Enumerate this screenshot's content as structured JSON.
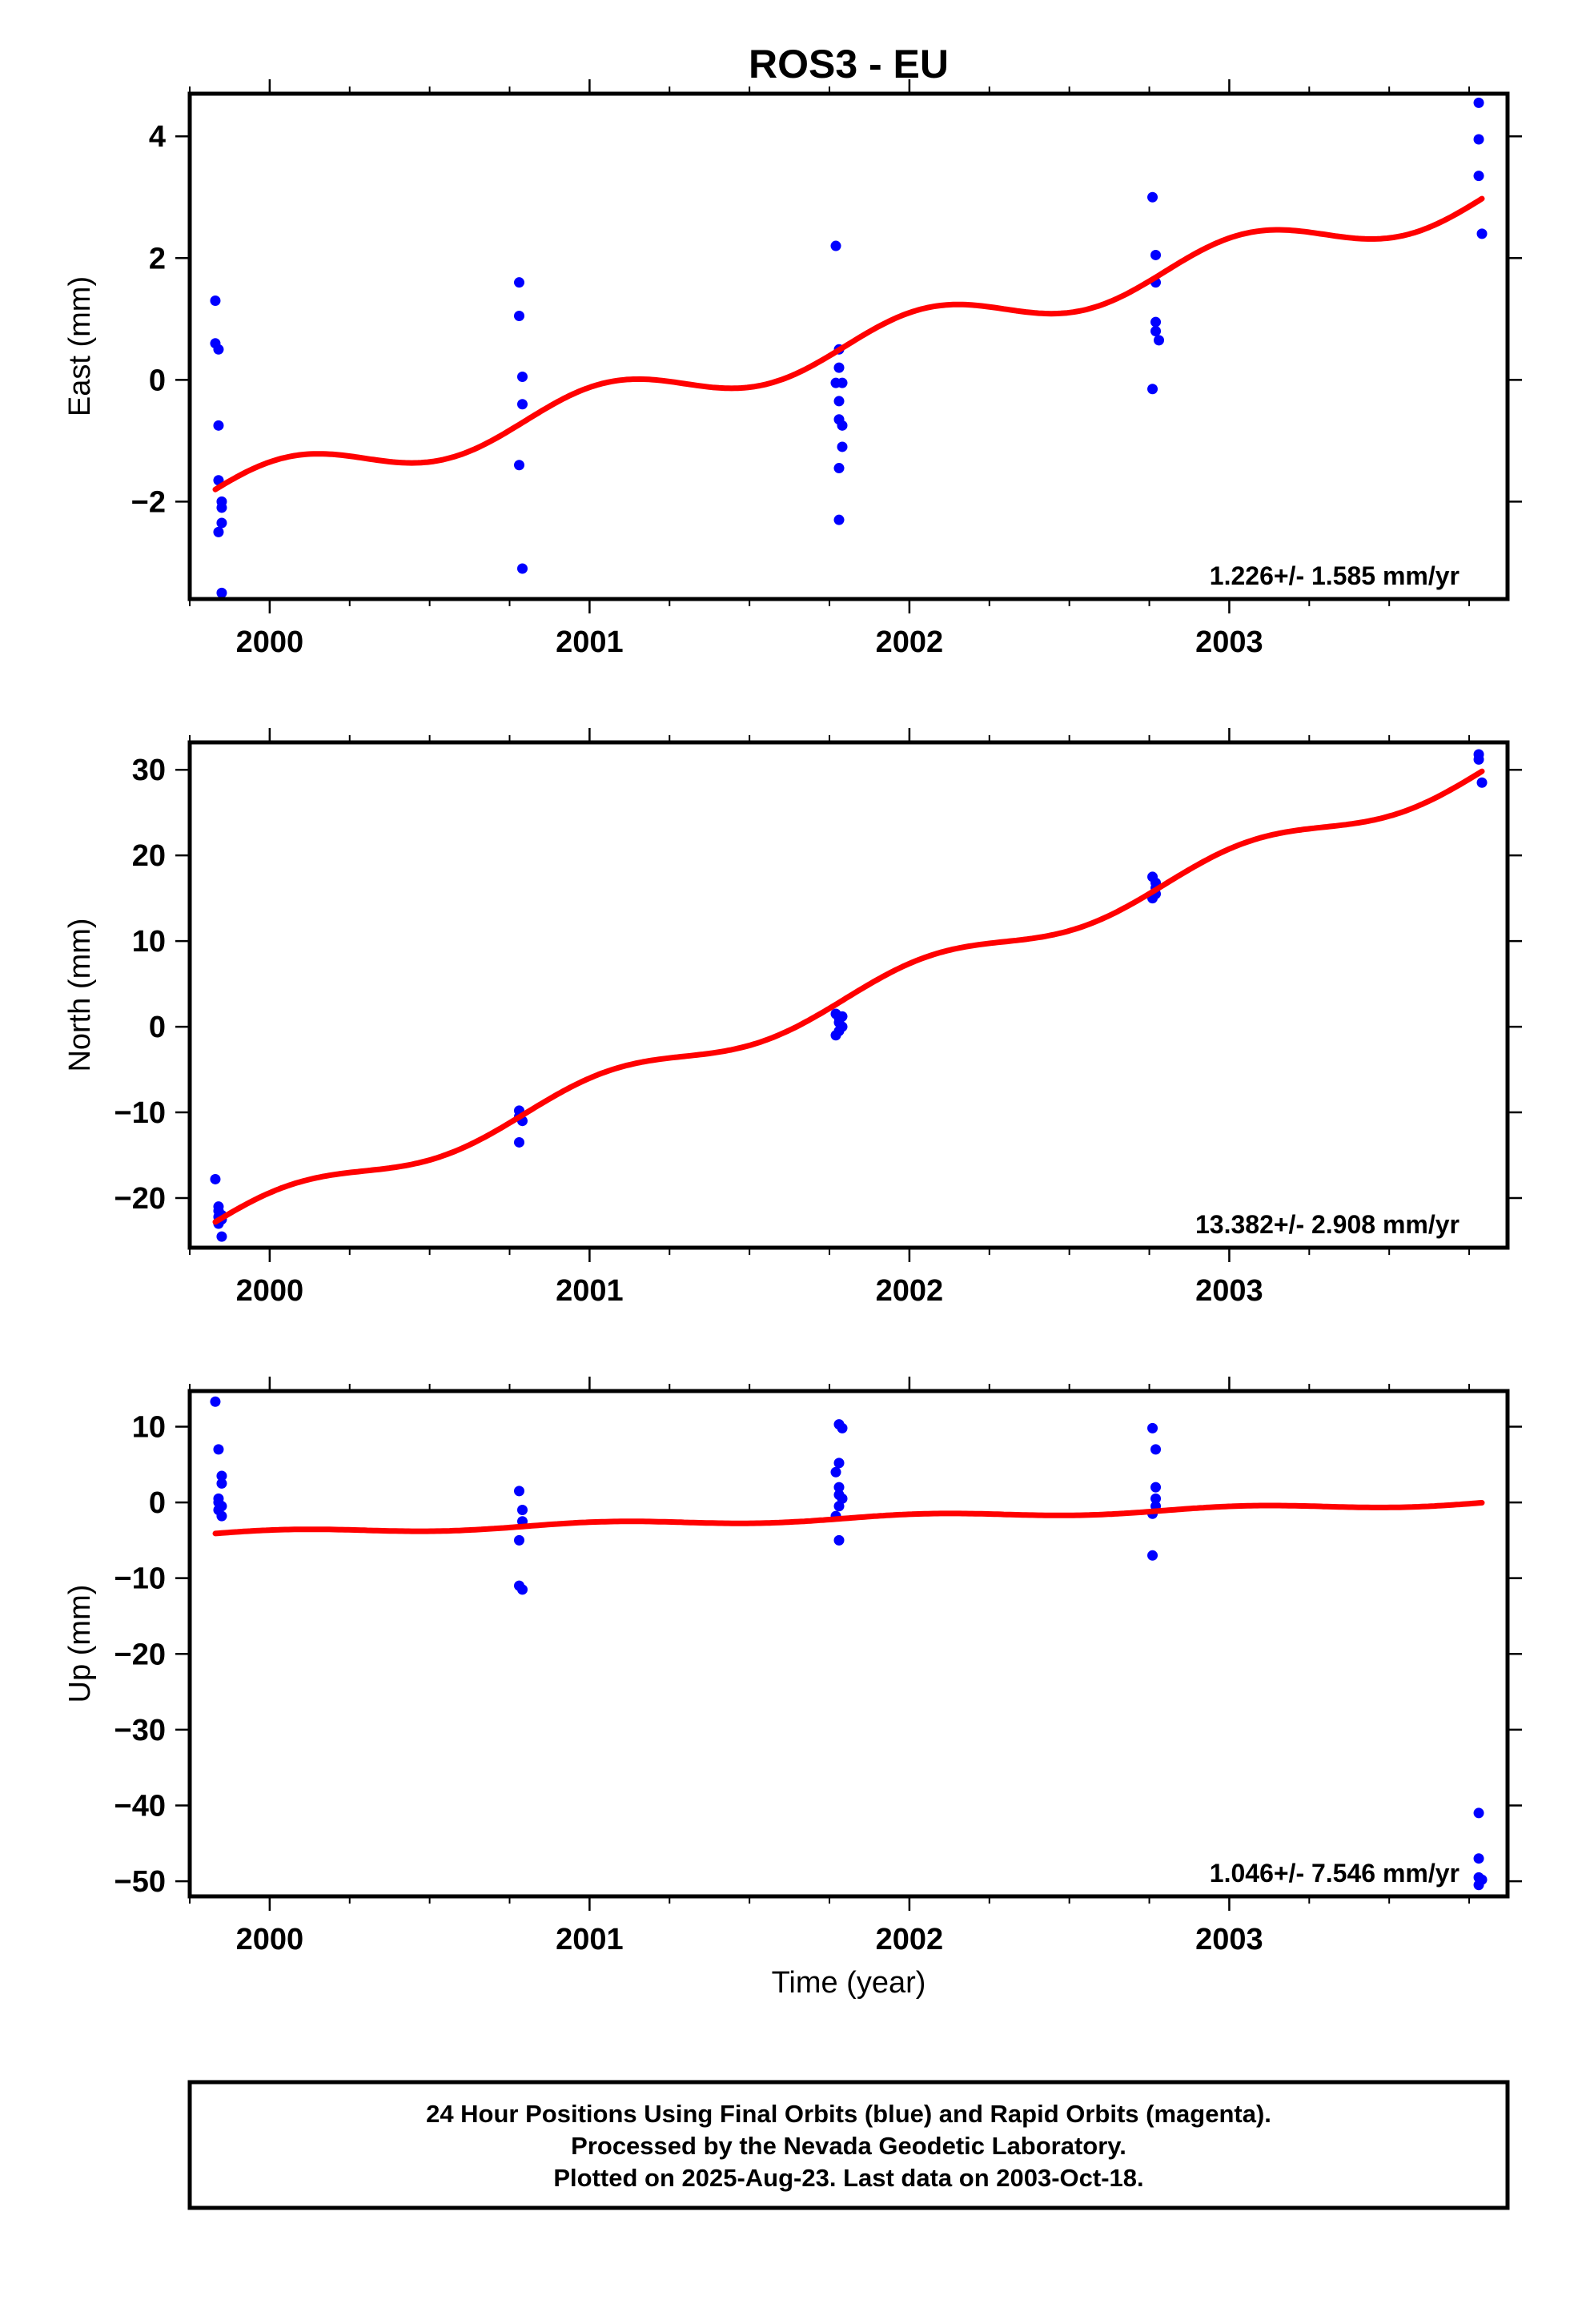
{
  "title": "ROS3 - EU",
  "xlabel": "Time (year)",
  "footer": {
    "line1": "24 Hour Positions Using Final Orbits (blue) and Rapid Orbits (magenta).",
    "line2": "Processed by the Nevada Geodetic Laboratory.",
    "line3": "Plotted on 2025-Aug-23. Last data on 2003-Oct-18."
  },
  "colors": {
    "points": "#0000ff",
    "fit": "#ff0000",
    "axes": "#000000"
  },
  "chart_data": [
    {
      "type": "scatter",
      "name": "east",
      "ylabel": "East (mm)",
      "rate_label": "1.226+/- 1.585 mm/yr",
      "xlim": [
        1999.75,
        2003.87
      ],
      "ylim": [
        -3.6,
        4.7
      ],
      "xticks": [
        2000,
        2001,
        2002,
        2003
      ],
      "xtick_labels": [
        "2000",
        "2001",
        "2002",
        "2003"
      ],
      "yticks": [
        -2,
        0,
        2,
        4
      ],
      "ytick_labels": [
        "−2",
        "0",
        "2",
        "4"
      ],
      "points": {
        "x": [
          1999.83,
          1999.83,
          1999.84,
          1999.84,
          1999.84,
          1999.85,
          1999.85,
          1999.85,
          1999.84,
          1999.85,
          2000.78,
          2000.78,
          2000.79,
          2000.79,
          2000.78,
          2000.79,
          2001.77,
          2001.78,
          2001.78,
          2001.77,
          2001.78,
          2001.78,
          2001.79,
          2001.79,
          2001.78,
          2001.78,
          2001.79,
          2002.76,
          2002.77,
          2002.77,
          2002.77,
          2002.77,
          2002.78,
          2002.76,
          2003.78,
          2003.78,
          2003.78,
          2003.79
        ],
        "y": [
          1.3,
          0.6,
          0.5,
          -0.75,
          -1.65,
          -2.0,
          -2.1,
          -2.35,
          -2.5,
          -3.5,
          1.6,
          1.05,
          0.05,
          -0.4,
          -1.4,
          -3.1,
          2.2,
          0.5,
          0.2,
          -0.05,
          -0.35,
          -0.65,
          -0.75,
          -1.1,
          -1.45,
          -2.3,
          -0.05,
          3.0,
          2.05,
          1.6,
          0.95,
          0.8,
          0.65,
          -0.15,
          4.55,
          3.95,
          3.35,
          2.4
        ]
      },
      "fit": {
        "start_year": 1999.83,
        "end_year": 2003.79,
        "start": -1.8,
        "rate": 1.226,
        "amplitude": 0.32,
        "phase": 0.2
      }
    },
    {
      "type": "scatter",
      "name": "north",
      "ylabel": "North (mm)",
      "rate_label": "13.382+/- 2.908 mm/yr",
      "xlim": [
        1999.75,
        2003.87
      ],
      "ylim": [
        -25.8,
        33.2
      ],
      "xticks": [
        2000,
        2001,
        2002,
        2003
      ],
      "xtick_labels": [
        "2000",
        "2001",
        "2002",
        "2003"
      ],
      "yticks": [
        -20,
        -10,
        0,
        10,
        20,
        30
      ],
      "ytick_labels": [
        "−20",
        "−10",
        "0",
        "10",
        "20",
        "30"
      ],
      "points": {
        "x": [
          1999.83,
          1999.84,
          1999.84,
          1999.85,
          1999.85,
          1999.84,
          1999.85,
          1999.84,
          2000.78,
          2000.78,
          2000.79,
          2000.78,
          2001.77,
          2001.78,
          2001.78,
          2001.79,
          2001.78,
          2001.77,
          2001.79,
          2002.76,
          2002.77,
          2002.77,
          2002.77,
          2002.76,
          2003.78,
          2003.78,
          2003.79
        ],
        "y": [
          -17.8,
          -21.0,
          -21.5,
          -22.0,
          -22.5,
          -23.0,
          -24.5,
          -22.2,
          -9.8,
          -10.5,
          -11.0,
          -13.5,
          1.5,
          1.0,
          0.5,
          0.0,
          -0.5,
          -1.0,
          1.2,
          17.5,
          16.8,
          16.2,
          15.5,
          15.0,
          31.8,
          31.2,
          28.5
        ]
      },
      "fit": {
        "start_year": 1999.83,
        "end_year": 2003.79,
        "start": -22.8,
        "rate": 13.382,
        "amplitude": 1.5,
        "phase": 0.2
      }
    },
    {
      "type": "scatter",
      "name": "up",
      "ylabel": "Up (mm)",
      "rate_label": "1.046+/- 7.546 mm/yr",
      "xlim": [
        1999.75,
        2003.87
      ],
      "ylim": [
        -52,
        14.7
      ],
      "xticks": [
        2000,
        2001,
        2002,
        2003
      ],
      "xtick_labels": [
        "2000",
        "2001",
        "2002",
        "2003"
      ],
      "yticks": [
        -50,
        -40,
        -30,
        -20,
        -10,
        0,
        10
      ],
      "ytick_labels": [
        "−50",
        "−40",
        "−30",
        "−20",
        "−10",
        "0",
        "10"
      ],
      "points": {
        "x": [
          1999.83,
          1999.84,
          1999.85,
          1999.85,
          1999.84,
          1999.85,
          1999.84,
          1999.85,
          1999.84,
          2000.78,
          2000.79,
          2000.79,
          2000.78,
          2000.78,
          2000.79,
          2001.78,
          2001.79,
          2001.78,
          2001.77,
          2001.78,
          2001.78,
          2001.79,
          2001.78,
          2001.77,
          2001.78,
          2002.76,
          2002.77,
          2002.77,
          2002.77,
          2002.77,
          2002.76,
          2002.76,
          2003.78,
          2003.78,
          2003.78,
          2003.78,
          2003.79
        ],
        "y": [
          13.3,
          7.0,
          3.5,
          2.5,
          0.0,
          -0.5,
          -1.0,
          -1.8,
          0.5,
          1.5,
          -1.0,
          -2.5,
          -5.0,
          -11.0,
          -11.5,
          10.3,
          9.8,
          5.2,
          4.0,
          2.0,
          1.0,
          0.5,
          -0.5,
          -1.8,
          -5.0,
          9.8,
          7.0,
          2.0,
          0.5,
          -0.5,
          -1.5,
          -7.0,
          -41.0,
          -47.0,
          -49.5,
          -50.5,
          -49.8
        ]
      },
      "fit": {
        "start_year": 1999.83,
        "end_year": 2003.79,
        "start": -4.1,
        "rate": 1.046,
        "amplitude": 0.35,
        "phase": 0.2
      }
    }
  ]
}
